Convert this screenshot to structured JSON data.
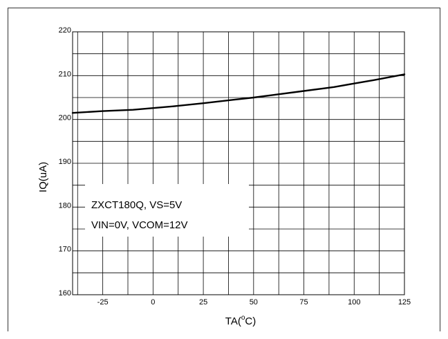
{
  "chart_data": {
    "type": "line",
    "title": "",
    "xlabel": "TA(",
    "xlabel_sup": "o",
    "xlabel_unit": "C)",
    "ylabel": "IQ(uA)",
    "xlim": [
      -40,
      125
    ],
    "ylim": [
      160,
      220
    ],
    "x_ticks": [
      -25,
      0,
      25,
      50,
      75,
      100,
      125
    ],
    "x_tick_labels": [
      "-25",
      "0",
      "25",
      "50",
      "75",
      "100",
      "125"
    ],
    "y_ticks": [
      160,
      170,
      180,
      190,
      200,
      210,
      220
    ],
    "y_tick_labels": [
      "160",
      "170",
      "180",
      "190",
      "200",
      "210",
      "220"
    ],
    "x_minor_step": 12.5,
    "y_minor_step": 5,
    "grid": true,
    "legend": "none",
    "series": [
      {
        "color": "#000000",
        "x": [
          -40,
          -25,
          -10,
          0,
          10,
          25,
          40,
          50,
          60,
          75,
          90,
          100,
          110,
          125
        ],
        "y": [
          201.5,
          201.9,
          202.2,
          202.6,
          203.0,
          203.7,
          204.5,
          205.0,
          205.6,
          206.5,
          207.4,
          208.2,
          209.0,
          210.3
        ]
      }
    ],
    "annotations": [
      "ZXCT180Q, VS=5V",
      "VIN=0V, VCOM=12V"
    ]
  }
}
